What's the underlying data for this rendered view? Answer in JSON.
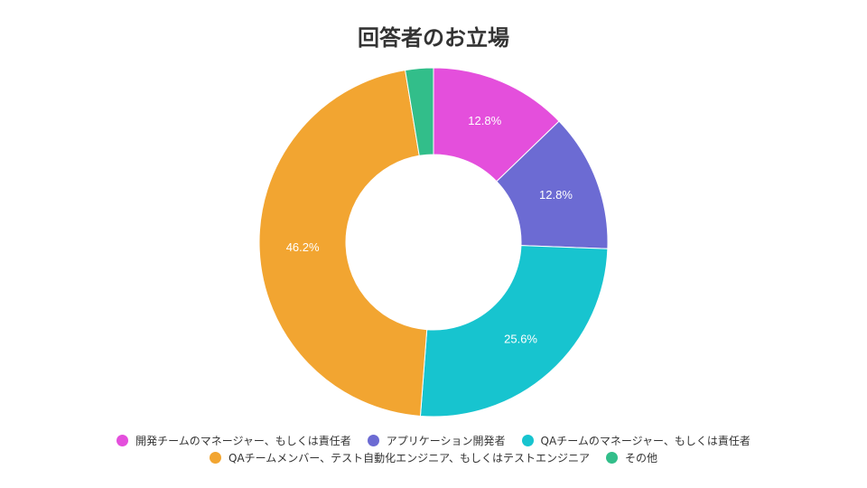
{
  "chart_data": {
    "type": "pie",
    "donut": true,
    "title": "回答者のお立場",
    "slices": [
      {
        "label": "開発チームのマネージャー、もしくは責任者",
        "value": 12.8,
        "value_label": "12.8%",
        "color": "#E44FDC"
      },
      {
        "label": "アプリケーション開発者",
        "value": 12.8,
        "value_label": "12.8%",
        "color": "#6C6BD3"
      },
      {
        "label": "QAチームのマネージャー、もしくは責任者",
        "value": 25.6,
        "value_label": "25.6%",
        "color": "#17C4CF"
      },
      {
        "label": "QAチームメンバー、テスト自動化エンジニア、もしくはテストエンジニア",
        "value": 46.2,
        "value_label": "46.2%",
        "color": "#F2A531"
      },
      {
        "label": "その他",
        "value": 2.6,
        "value_label": "",
        "color": "#32BE8A"
      }
    ],
    "legend_position": "bottom"
  }
}
